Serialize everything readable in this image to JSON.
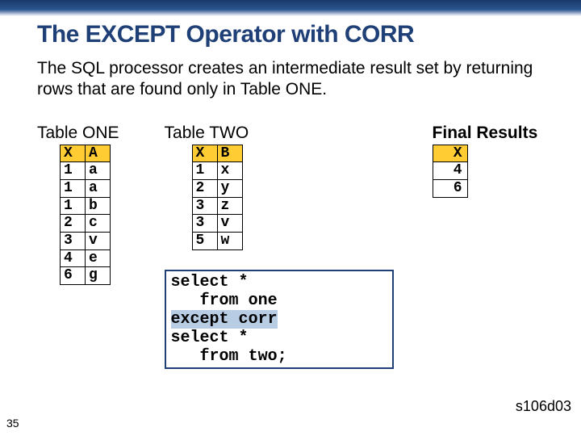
{
  "title": "The EXCEPT Operator with CORR",
  "body": "The SQL processor creates an intermediate result set by returning rows that are found only in Table ONE.",
  "table_one": {
    "label": "Table ONE",
    "columns": [
      "X",
      "A"
    ],
    "rows": [
      [
        "1",
        "a"
      ],
      [
        "1",
        "a"
      ],
      [
        "1",
        "b"
      ],
      [
        "2",
        "c"
      ],
      [
        "3",
        "v"
      ],
      [
        "4",
        "e"
      ],
      [
        "6",
        "g"
      ]
    ],
    "header_bg": "#ffcc33"
  },
  "table_two": {
    "label": "Table TWO",
    "columns": [
      "X",
      "B"
    ],
    "rows": [
      [
        "1",
        "x"
      ],
      [
        "2",
        "y"
      ],
      [
        "3",
        "z"
      ],
      [
        "3",
        "v"
      ],
      [
        "5",
        "w"
      ]
    ],
    "header_bg": "#ffcc33"
  },
  "final": {
    "label": "Final Results",
    "columns": [
      "X"
    ],
    "rows": [
      [
        "4"
      ],
      [
        "6"
      ]
    ],
    "header_bg": "#ffcc33"
  },
  "code": {
    "lines": [
      {
        "text": "select *",
        "hl": false
      },
      {
        "text": "   from one",
        "hl": false
      },
      {
        "text": "except corr",
        "hl": true
      },
      {
        "text": "select *",
        "hl": false
      },
      {
        "text": "   from two;",
        "hl": false
      }
    ],
    "highlight_bg": "#b8cce4",
    "border_color": "#1f3f77"
  },
  "page_number": "35",
  "footer_code": "s106d03",
  "colors": {
    "title": "#1f3f77",
    "topbar_from": "#1a3a6b",
    "topbar_to": "#ffffff"
  }
}
